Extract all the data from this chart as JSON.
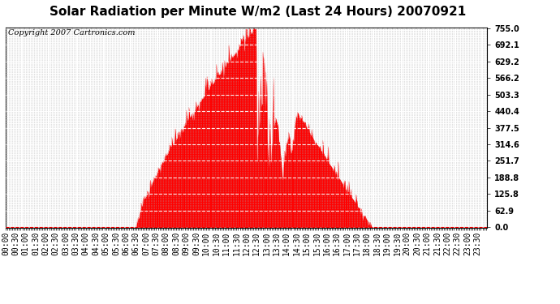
{
  "title": "Solar Radiation per Minute W/m2 (Last 24 Hours) 20070921",
  "copyright_text": "Copyright 2007 Cartronics.com",
  "yticks": [
    0.0,
    62.9,
    125.8,
    188.8,
    251.7,
    314.6,
    377.5,
    440.4,
    503.3,
    566.2,
    629.2,
    692.1,
    755.0
  ],
  "ymax": 755.0,
  "ymin": 0.0,
  "fill_color": "#ff0000",
  "line_color": "#ff0000",
  "bg_color": "#ffffff",
  "grid_color": "#aaaaaa",
  "dashed_line_color": "#ff0000",
  "title_fontsize": 11,
  "copyright_fontsize": 7,
  "tick_label_fontsize": 7,
  "peak_value": 755.0,
  "sunrise_min": 390,
  "sunset_min": 1095,
  "peak_min": 745
}
